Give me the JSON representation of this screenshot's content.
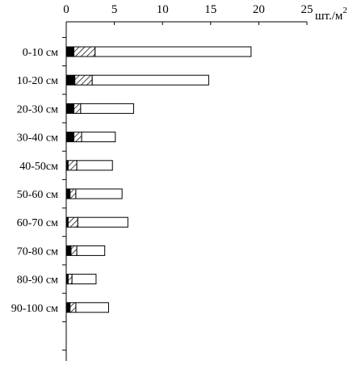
{
  "chart_data": {
    "type": "bar",
    "orientation": "horizontal",
    "stacked": true,
    "title": "",
    "xlabel": "",
    "ylabel": "",
    "unit_label": "шт./м",
    "unit_superscript": "2",
    "xlim": [
      0,
      25
    ],
    "x_ticks": [
      "0",
      "5",
      "10",
      "15",
      "20",
      "25"
    ],
    "x_axis_position": "top",
    "grid": false,
    "categories": [
      "0-10 см",
      "10-20 см",
      "20-30 см",
      "30-40 см",
      "40-50см",
      "50-60 см",
      "60-70 см",
      "70-80 см",
      "80-90 см",
      "90-100 см"
    ],
    "series": [
      {
        "pattern": "solid-black",
        "values": [
          0.8,
          0.9,
          0.8,
          0.8,
          0.2,
          0.4,
          0.2,
          0.5,
          0.2,
          0.4
        ]
      },
      {
        "pattern": "hatched",
        "values": [
          2.2,
          1.8,
          0.7,
          0.8,
          0.9,
          0.6,
          1.0,
          0.6,
          0.4,
          0.6
        ]
      },
      {
        "pattern": "white",
        "values": [
          16.2,
          12.1,
          5.5,
          3.5,
          3.7,
          4.8,
          5.2,
          2.9,
          2.5,
          3.4
        ]
      }
    ],
    "colors": {
      "solid-black": "#000000",
      "white": "#ffffff",
      "outline": "#000000"
    }
  }
}
